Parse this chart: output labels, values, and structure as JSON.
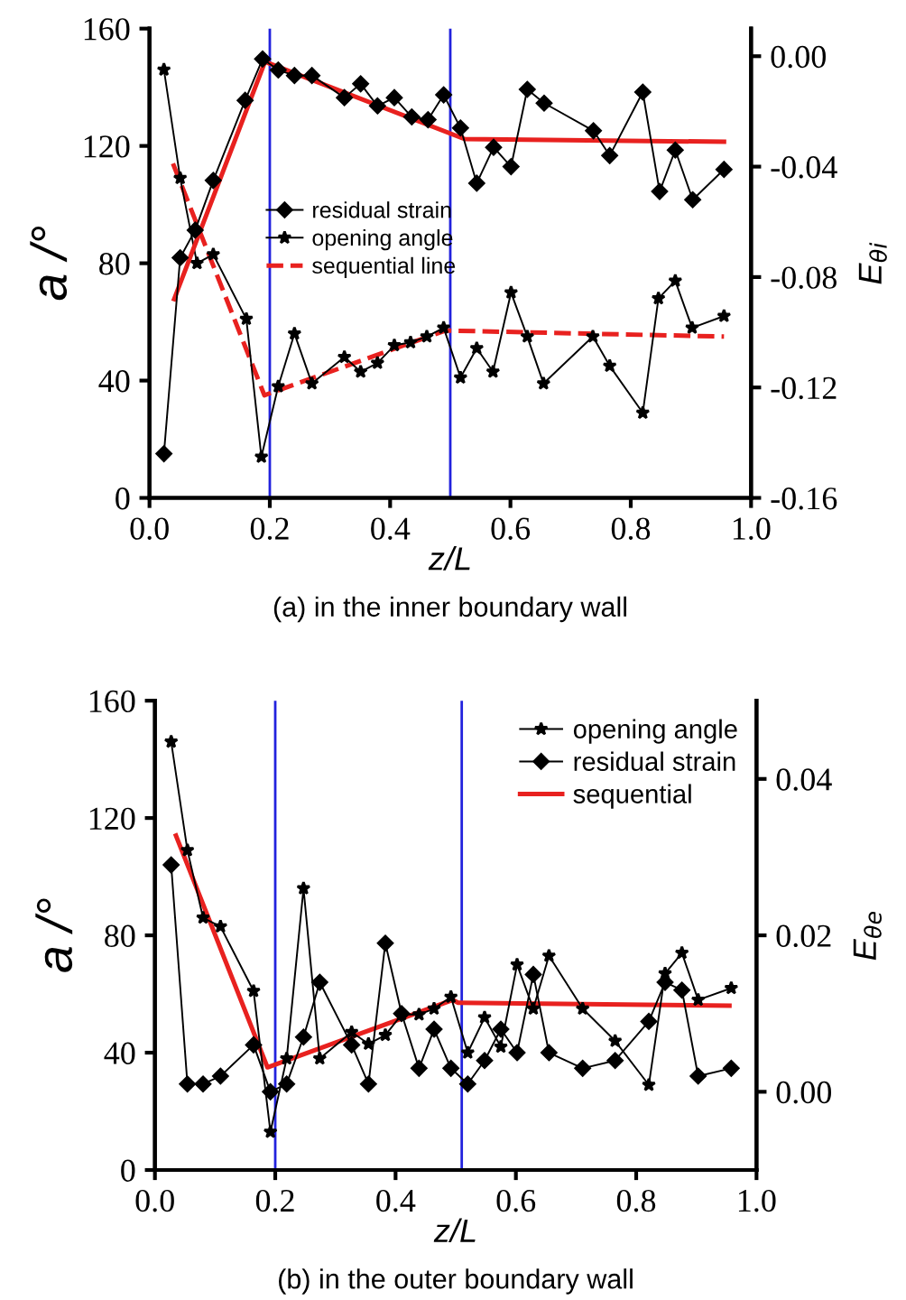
{
  "chart_data": [
    {
      "type": "line",
      "title": "(a) in the inner boundary wall",
      "xlabel": "z/L",
      "ylabel": "a /°",
      "y2label": "E$_{θi}$",
      "xlim": [
        0,
        1
      ],
      "xticks": [
        {
          "value": 0,
          "label": "0.0"
        },
        {
          "value": 0.2,
          "label": "0.2"
        },
        {
          "value": 0.4,
          "label": "0.4"
        },
        {
          "value": 0.6,
          "label": "0.6"
        },
        {
          "value": 0.8,
          "label": "0.8"
        },
        {
          "value": 1,
          "label": "1.0"
        }
      ],
      "ylim": [
        0,
        160
      ],
      "yticks": [
        0,
        40,
        80,
        120,
        160
      ],
      "y2lim": [
        -0.16,
        0.01
      ],
      "y2ticks": [
        {
          "value": 0,
          "label": "0.00"
        },
        {
          "value": -0.04,
          "label": "-0.04"
        },
        {
          "value": -0.08,
          "label": "-0.08"
        },
        {
          "value": -0.12,
          "label": "-0.12"
        },
        {
          "value": -0.16,
          "label": "-0.16"
        }
      ],
      "legend": "center",
      "grid": false,
      "ref_lines": [
        {
          "axis": "x",
          "value": 0.2,
          "color": "#2222dd"
        },
        {
          "axis": "x",
          "value": 0.5,
          "color": "#2222dd"
        }
      ],
      "series": [
        {
          "name": "residual strain",
          "color": "#000000",
          "axis": "y2",
          "marker": "diamond",
          "line_style": "solid",
          "x": [
            0.024,
            0.051,
            0.076,
            0.106,
            0.159,
            0.188,
            0.214,
            0.241,
            0.27,
            0.324,
            0.351,
            0.379,
            0.407,
            0.436,
            0.463,
            0.489,
            0.517,
            0.544,
            0.572,
            0.601,
            0.628,
            0.656,
            0.738,
            0.765,
            0.82,
            0.848,
            0.874,
            0.903,
            0.955
          ],
          "values": [
            -0.144,
            -0.073,
            -0.063,
            -0.045,
            -0.016,
            -0.001,
            -0.005,
            -0.007,
            -0.007,
            -0.015,
            -0.01,
            -0.018,
            -0.015,
            -0.022,
            -0.023,
            -0.014,
            -0.026,
            -0.046,
            -0.033,
            -0.04,
            -0.012,
            -0.017,
            -0.027,
            -0.036,
            -0.013,
            -0.049,
            -0.034,
            -0.052,
            -0.041
          ]
        },
        {
          "name": "opening angle",
          "color": "#000000",
          "axis": "y",
          "marker": "star",
          "line_style": "solid",
          "x": [
            0.024,
            0.051,
            0.079,
            0.106,
            0.161,
            0.186,
            0.214,
            0.241,
            0.27,
            0.324,
            0.351,
            0.379,
            0.407,
            0.434,
            0.461,
            0.489,
            0.517,
            0.544,
            0.571,
            0.601,
            0.628,
            0.655,
            0.737,
            0.765,
            0.82,
            0.846,
            0.874,
            0.902,
            0.955
          ],
          "values": [
            146,
            109,
            80,
            83,
            61,
            14,
            38,
            56,
            39,
            48,
            43,
            46,
            52,
            53,
            55,
            58,
            41,
            51,
            43,
            70,
            55,
            39,
            55,
            45,
            29,
            68,
            74,
            58,
            62
          ]
        },
        {
          "color": "#e8211f",
          "axis": "y2",
          "marker": "none",
          "line_style": "solid",
          "x": [
            0.041,
            0.192,
            0.524,
            0.955
          ],
          "values": [
            -0.088,
            -0.002,
            -0.03,
            -0.031
          ]
        },
        {
          "name": "sequential line",
          "color": "#e8211f",
          "axis": "y",
          "marker": "none",
          "line_style": "dashed",
          "x": [
            0.039,
            0.191,
            0.491,
            0.504,
            0.955
          ],
          "values": [
            114,
            35,
            57,
            57,
            55
          ]
        }
      ]
    },
    {
      "type": "line",
      "title": "(b) in the outer boundary wall",
      "xlabel": "z/L",
      "ylabel": "a /°",
      "y2label": "E$_{θe}$",
      "xlim": [
        0,
        1
      ],
      "xticks": [
        {
          "value": 0,
          "label": "0.0"
        },
        {
          "value": 0.2,
          "label": "0.2"
        },
        {
          "value": 0.4,
          "label": "0.4"
        },
        {
          "value": 0.6,
          "label": "0.6"
        },
        {
          "value": 0.8,
          "label": "0.8"
        },
        {
          "value": 1,
          "label": "1.0"
        }
      ],
      "ylim": [
        0,
        160
      ],
      "yticks": [
        0,
        40,
        80,
        120,
        160
      ],
      "y2lim": [
        -0.01,
        0.05
      ],
      "y2ticks": [
        {
          "value": 0,
          "label": "0.00"
        },
        {
          "value": 0.02,
          "label": "0.02"
        },
        {
          "value": 0.04,
          "label": "0.04"
        }
      ],
      "legend": "top right",
      "grid": false,
      "ref_lines": [
        {
          "axis": "x",
          "value": 0.2,
          "color": "#2222dd"
        },
        {
          "axis": "x",
          "value": 0.51,
          "color": "#2222dd"
        }
      ],
      "series": [
        {
          "name": "opening angle",
          "color": "#000000",
          "axis": "y",
          "marker": "star",
          "line_style": "solid",
          "x": [
            0.027,
            0.054,
            0.08,
            0.109,
            0.164,
            0.192,
            0.219,
            0.247,
            0.274,
            0.327,
            0.355,
            0.383,
            0.41,
            0.439,
            0.464,
            0.492,
            0.52,
            0.548,
            0.575,
            0.602,
            0.629,
            0.655,
            0.711,
            0.765,
            0.821,
            0.848,
            0.876,
            0.903,
            0.958
          ],
          "values": [
            146,
            109,
            86,
            83,
            61,
            13,
            38,
            96,
            38,
            47,
            43,
            46,
            53,
            53,
            55,
            59,
            40,
            52,
            42,
            70,
            55,
            73,
            55,
            44,
            29,
            67,
            74,
            58,
            62
          ]
        },
        {
          "name": "residual strain",
          "color": "#000000",
          "axis": "y2",
          "marker": "diamond",
          "line_style": "solid",
          "x": [
            0.027,
            0.054,
            0.08,
            0.109,
            0.164,
            0.192,
            0.219,
            0.247,
            0.274,
            0.327,
            0.355,
            0.383,
            0.41,
            0.439,
            0.464,
            0.492,
            0.52,
            0.548,
            0.575,
            0.602,
            0.629,
            0.655,
            0.711,
            0.765,
            0.821,
            0.848,
            0.876,
            0.903,
            0.958
          ],
          "values": [
            0.029,
            0.001,
            0.001,
            0.002,
            0.006,
            0.0,
            0.001,
            0.007,
            0.014,
            0.006,
            0.001,
            0.019,
            0.01,
            0.003,
            0.008,
            0.003,
            0.001,
            0.004,
            0.008,
            0.005,
            0.015,
            0.005,
            0.003,
            0.004,
            0.009,
            0.014,
            0.013,
            0.002,
            0.003
          ]
        },
        {
          "name": "sequential",
          "color": "#e8211f",
          "axis": "y",
          "marker": "none",
          "line_style": "solid",
          "x": [
            0.035,
            0.187,
            0.495,
            0.504,
            0.955
          ],
          "values": [
            114,
            35,
            58,
            57,
            56
          ]
        }
      ]
    }
  ]
}
